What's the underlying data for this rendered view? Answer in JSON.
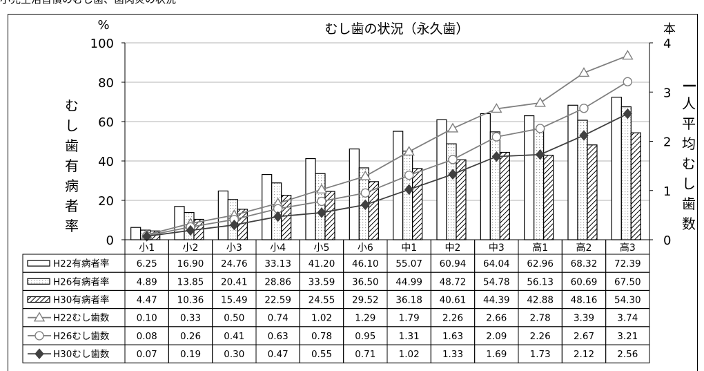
{
  "caption": "小児生活習慣のむし歯、歯肉炎の状況",
  "chart_data": {
    "type": "bar",
    "title": "むし歯の状況（永久歯）",
    "ylabel_left": "むし歯有病者率",
    "ylabel_left_unit": "%",
    "ylabel_right": "一人平均むし歯数",
    "ylabel_right_unit": "本",
    "ylim_left": [
      0,
      100
    ],
    "ylim_right": [
      0,
      4
    ],
    "yticks_left": [
      "0",
      "20",
      "40",
      "60",
      "80",
      "100"
    ],
    "yticks_right": [
      "0",
      "1",
      "2",
      "3",
      "4"
    ],
    "categories": [
      "小1",
      "小2",
      "小3",
      "小4",
      "小5",
      "小6",
      "中1",
      "中2",
      "中3",
      "高1",
      "高2",
      "高3"
    ],
    "bar_series": [
      {
        "name": "H22有病者率",
        "style": "white",
        "values": [
          6.25,
          16.9,
          24.76,
          33.13,
          41.2,
          46.1,
          55.07,
          60.94,
          64.04,
          62.96,
          68.32,
          72.39
        ],
        "labels": [
          "6.25",
          "16.90",
          "24.76",
          "33.13",
          "41.20",
          "46.10",
          "55.07",
          "60.94",
          "64.04",
          "62.96",
          "68.32",
          "72.39"
        ]
      },
      {
        "name": "H26有病者率",
        "style": "dotted",
        "values": [
          4.89,
          13.85,
          20.41,
          28.86,
          33.59,
          36.5,
          44.99,
          48.72,
          54.78,
          56.13,
          60.69,
          67.5
        ],
        "labels": [
          "4.89",
          "13.85",
          "20.41",
          "28.86",
          "33.59",
          "36.50",
          "44.99",
          "48.72",
          "54.78",
          "56.13",
          "60.69",
          "67.50"
        ]
      },
      {
        "name": "H30有病者率",
        "style": "hatched",
        "values": [
          4.47,
          10.36,
          15.49,
          22.59,
          24.55,
          29.52,
          36.18,
          40.61,
          44.39,
          42.88,
          48.16,
          54.3
        ],
        "labels": [
          "4.47",
          "10.36",
          "15.49",
          "22.59",
          "24.55",
          "29.52",
          "36.18",
          "40.61",
          "44.39",
          "42.88",
          "48.16",
          "54.30"
        ]
      }
    ],
    "line_series": [
      {
        "name": "H22むし歯数",
        "marker": "triangle",
        "color": "#808080",
        "values": [
          0.1,
          0.33,
          0.5,
          0.74,
          1.02,
          1.29,
          1.79,
          2.26,
          2.66,
          2.78,
          3.39,
          3.74
        ],
        "labels": [
          "0.10",
          "0.33",
          "0.50",
          "0.74",
          "1.02",
          "1.29",
          "1.79",
          "2.26",
          "2.66",
          "2.78",
          "3.39",
          "3.74"
        ]
      },
      {
        "name": "H26むし歯数",
        "marker": "circle",
        "color": "#808080",
        "values": [
          0.08,
          0.26,
          0.41,
          0.63,
          0.78,
          0.95,
          1.31,
          1.63,
          2.09,
          2.26,
          2.67,
          3.21
        ],
        "labels": [
          "0.08",
          "0.26",
          "0.41",
          "0.63",
          "0.78",
          "0.95",
          "1.31",
          "1.63",
          "2.09",
          "2.26",
          "2.67",
          "3.21"
        ]
      },
      {
        "name": "H30むし歯数",
        "marker": "diamond",
        "color": "#404040",
        "values": [
          0.07,
          0.19,
          0.3,
          0.47,
          0.55,
          0.71,
          1.02,
          1.33,
          1.69,
          1.73,
          2.12,
          2.56
        ],
        "labels": [
          "0.07",
          "0.19",
          "0.30",
          "0.47",
          "0.55",
          "0.71",
          "1.02",
          "1.33",
          "1.69",
          "1.73",
          "2.12",
          "2.56"
        ]
      }
    ]
  }
}
